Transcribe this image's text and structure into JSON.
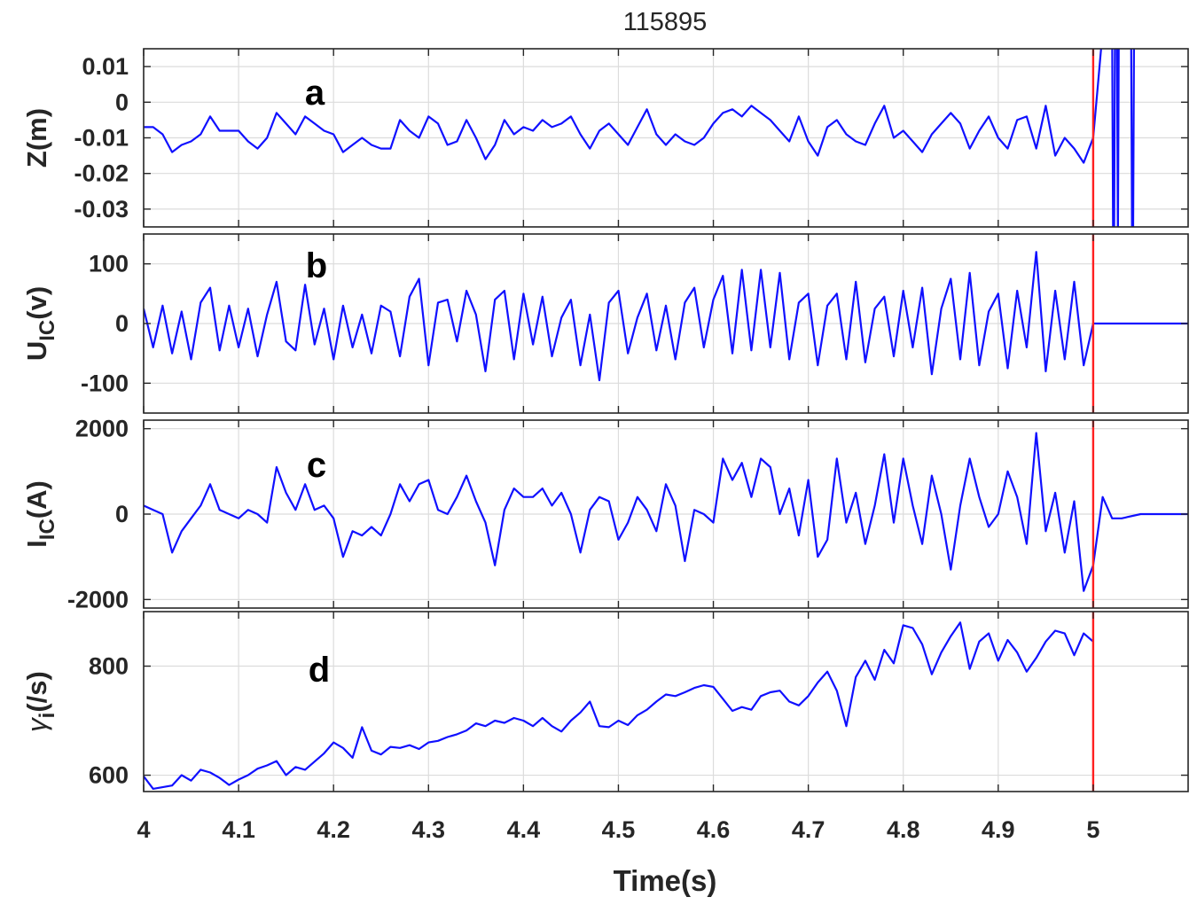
{
  "chart_data": {
    "title": "115895",
    "type": "line",
    "xlabel": "Time(s)",
    "xlim": [
      4,
      5.1
    ],
    "xticks": [
      "4",
      "4.1",
      "4.2",
      "4.3",
      "4.4",
      "4.5",
      "4.6",
      "4.7",
      "4.8",
      "4.9",
      "5"
    ],
    "xtick_values": [
      4,
      4.1,
      4.2,
      4.3,
      4.4,
      4.5,
      4.6,
      4.7,
      4.8,
      4.9,
      5
    ],
    "grid": true,
    "series_color": "#1010ff",
    "marker_line": {
      "x": 5.0,
      "color": "#ff2020"
    },
    "panels": [
      {
        "label": "a",
        "ylabel_main": "Z(m)",
        "ylabel_sub": "",
        "ylabel_unit": "",
        "ylim": [
          -0.035,
          0.015
        ],
        "yticks": [
          "0.01",
          "0",
          "-0.01",
          "-0.02",
          "-0.03"
        ],
        "ytick_values": [
          0.01,
          0,
          -0.01,
          -0.02,
          -0.03
        ],
        "x": [
          4.0,
          4.01,
          4.02,
          4.03,
          4.04,
          4.05,
          4.06,
          4.07,
          4.08,
          4.09,
          4.1,
          4.11,
          4.12,
          4.13,
          4.14,
          4.15,
          4.16,
          4.17,
          4.18,
          4.19,
          4.2,
          4.21,
          4.22,
          4.23,
          4.24,
          4.25,
          4.26,
          4.27,
          4.28,
          4.29,
          4.3,
          4.31,
          4.32,
          4.33,
          4.34,
          4.35,
          4.36,
          4.37,
          4.38,
          4.39,
          4.4,
          4.41,
          4.42,
          4.43,
          4.44,
          4.45,
          4.46,
          4.47,
          4.48,
          4.49,
          4.5,
          4.51,
          4.52,
          4.53,
          4.54,
          4.55,
          4.56,
          4.57,
          4.58,
          4.59,
          4.6,
          4.61,
          4.62,
          4.63,
          4.64,
          4.65,
          4.66,
          4.67,
          4.68,
          4.69,
          4.7,
          4.71,
          4.72,
          4.73,
          4.74,
          4.75,
          4.76,
          4.77,
          4.78,
          4.79,
          4.8,
          4.81,
          4.82,
          4.83,
          4.84,
          4.85,
          4.86,
          4.87,
          4.88,
          4.89,
          4.9,
          4.91,
          4.92,
          4.93,
          4.94,
          4.95,
          4.96,
          4.97,
          4.98,
          4.99,
          5.0,
          5.005,
          5.01,
          5.015,
          5.02,
          5.021,
          5.022,
          5.023,
          5.025,
          5.026,
          5.027,
          5.04,
          5.041,
          5.042,
          5.043
        ],
        "values": [
          -0.007,
          -0.007,
          -0.009,
          -0.014,
          -0.012,
          -0.011,
          -0.009,
          -0.004,
          -0.008,
          -0.008,
          -0.008,
          -0.011,
          -0.013,
          -0.01,
          -0.003,
          -0.006,
          -0.009,
          -0.004,
          -0.006,
          -0.008,
          -0.009,
          -0.014,
          -0.012,
          -0.01,
          -0.012,
          -0.013,
          -0.013,
          -0.005,
          -0.008,
          -0.01,
          -0.004,
          -0.006,
          -0.012,
          -0.011,
          -0.005,
          -0.01,
          -0.016,
          -0.012,
          -0.005,
          -0.009,
          -0.007,
          -0.008,
          -0.005,
          -0.007,
          -0.006,
          -0.004,
          -0.009,
          -0.013,
          -0.008,
          -0.006,
          -0.009,
          -0.012,
          -0.007,
          -0.002,
          -0.009,
          -0.012,
          -0.009,
          -0.011,
          -0.012,
          -0.01,
          -0.006,
          -0.003,
          -0.002,
          -0.004,
          -0.001,
          -0.003,
          -0.005,
          -0.008,
          -0.011,
          -0.004,
          -0.011,
          -0.015,
          -0.007,
          -0.005,
          -0.009,
          -0.011,
          -0.012,
          -0.006,
          -0.001,
          -0.01,
          -0.008,
          -0.011,
          -0.014,
          -0.009,
          -0.006,
          -0.003,
          -0.006,
          -0.013,
          -0.008,
          -0.004,
          -0.01,
          -0.013,
          -0.005,
          -0.004,
          -0.013,
          -0.001,
          -0.015,
          -0.01,
          -0.013,
          -0.017,
          -0.01,
          0.005,
          0.02,
          0.02,
          0.02,
          -0.04,
          -0.04,
          0.02,
          0.02,
          -0.04,
          0.02,
          0.02,
          -0.04,
          -0.04,
          0.02
        ]
      },
      {
        "label": "b",
        "ylabel_main": "U",
        "ylabel_sub": "IC",
        "ylabel_unit": "(v)",
        "ylim": [
          -150,
          150
        ],
        "yticks": [
          "100",
          "0",
          "-100"
        ],
        "ytick_values": [
          100,
          0,
          -100
        ],
        "x": [
          4.0,
          4.01,
          4.02,
          4.03,
          4.04,
          4.05,
          4.06,
          4.07,
          4.08,
          4.09,
          4.1,
          4.11,
          4.12,
          4.13,
          4.14,
          4.15,
          4.16,
          4.17,
          4.18,
          4.19,
          4.2,
          4.21,
          4.22,
          4.23,
          4.24,
          4.25,
          4.26,
          4.27,
          4.28,
          4.29,
          4.3,
          4.31,
          4.32,
          4.33,
          4.34,
          4.35,
          4.36,
          4.37,
          4.38,
          4.39,
          4.4,
          4.41,
          4.42,
          4.43,
          4.44,
          4.45,
          4.46,
          4.47,
          4.48,
          4.49,
          4.5,
          4.51,
          4.52,
          4.53,
          4.54,
          4.55,
          4.56,
          4.57,
          4.58,
          4.59,
          4.6,
          4.61,
          4.62,
          4.63,
          4.64,
          4.65,
          4.66,
          4.67,
          4.68,
          4.69,
          4.7,
          4.71,
          4.72,
          4.73,
          4.74,
          4.75,
          4.76,
          4.77,
          4.78,
          4.79,
          4.8,
          4.81,
          4.82,
          4.83,
          4.84,
          4.85,
          4.86,
          4.87,
          4.88,
          4.89,
          4.9,
          4.91,
          4.92,
          4.93,
          4.94,
          4.95,
          4.96,
          4.97,
          4.98,
          4.99,
          5.0,
          5.001,
          5.1
        ],
        "values": [
          25,
          -40,
          30,
          -50,
          20,
          -60,
          35,
          60,
          -45,
          30,
          -40,
          25,
          -55,
          15,
          70,
          -30,
          -45,
          65,
          -35,
          25,
          -60,
          30,
          -40,
          15,
          -50,
          30,
          20,
          -55,
          45,
          75,
          -70,
          35,
          40,
          -30,
          55,
          15,
          -80,
          40,
          55,
          -60,
          50,
          -35,
          45,
          -55,
          10,
          40,
          -70,
          15,
          -95,
          35,
          55,
          -50,
          10,
          50,
          -45,
          30,
          -60,
          35,
          60,
          -40,
          40,
          80,
          -50,
          90,
          -45,
          90,
          -40,
          85,
          -60,
          35,
          50,
          -70,
          30,
          50,
          -60,
          70,
          -65,
          25,
          45,
          -55,
          55,
          -40,
          60,
          -85,
          25,
          75,
          -60,
          85,
          -70,
          20,
          50,
          -75,
          55,
          -40,
          120,
          -80,
          55,
          -60,
          70,
          -70,
          0,
          0,
          0
        ]
      },
      {
        "label": "c",
        "ylabel_main": "I",
        "ylabel_sub": "IC",
        "ylabel_unit": "(A)",
        "ylim": [
          -2200,
          2200
        ],
        "yticks": [
          "2000",
          "0",
          "-2000"
        ],
        "ytick_values": [
          2000,
          0,
          -2000
        ],
        "x": [
          4.0,
          4.01,
          4.02,
          4.03,
          4.04,
          4.05,
          4.06,
          4.07,
          4.08,
          4.09,
          4.1,
          4.11,
          4.12,
          4.13,
          4.14,
          4.15,
          4.16,
          4.17,
          4.18,
          4.19,
          4.2,
          4.21,
          4.22,
          4.23,
          4.24,
          4.25,
          4.26,
          4.27,
          4.28,
          4.29,
          4.3,
          4.31,
          4.32,
          4.33,
          4.34,
          4.35,
          4.36,
          4.37,
          4.38,
          4.39,
          4.4,
          4.41,
          4.42,
          4.43,
          4.44,
          4.45,
          4.46,
          4.47,
          4.48,
          4.49,
          4.5,
          4.51,
          4.52,
          4.53,
          4.54,
          4.55,
          4.56,
          4.57,
          4.58,
          4.59,
          4.6,
          4.61,
          4.62,
          4.63,
          4.64,
          4.65,
          4.66,
          4.67,
          4.68,
          4.69,
          4.7,
          4.71,
          4.72,
          4.73,
          4.74,
          4.75,
          4.76,
          4.77,
          4.78,
          4.79,
          4.8,
          4.81,
          4.82,
          4.83,
          4.84,
          4.85,
          4.86,
          4.87,
          4.88,
          4.89,
          4.9,
          4.91,
          4.92,
          4.93,
          4.94,
          4.95,
          4.96,
          4.97,
          4.98,
          4.99,
          5.0,
          5.01,
          5.02,
          5.03,
          5.05,
          5.08,
          5.1
        ],
        "values": [
          200,
          100,
          0,
          -900,
          -400,
          -100,
          200,
          700,
          100,
          0,
          -100,
          100,
          0,
          -200,
          1100,
          500,
          100,
          700,
          100,
          200,
          -100,
          -1000,
          -400,
          -500,
          -300,
          -500,
          0,
          700,
          300,
          700,
          800,
          100,
          0,
          400,
          900,
          300,
          -200,
          -1200,
          100,
          600,
          400,
          400,
          600,
          200,
          500,
          0,
          -900,
          100,
          400,
          300,
          -600,
          -200,
          400,
          100,
          -400,
          700,
          200,
          -1100,
          100,
          0,
          -200,
          1300,
          800,
          1200,
          400,
          1300,
          1100,
          0,
          600,
          -500,
          800,
          -1000,
          -600,
          1300,
          -200,
          500,
          -700,
          200,
          1400,
          -200,
          1300,
          200,
          -700,
          900,
          0,
          -1300,
          200,
          1300,
          400,
          -300,
          0,
          1000,
          400,
          -700,
          1900,
          -400,
          500,
          -900,
          300,
          -1800,
          -1200,
          400,
          -100,
          -100,
          0,
          0,
          0
        ]
      },
      {
        "label": "d",
        "ylabel_main": "γ",
        "ylabel_sub": "i",
        "ylabel_unit": "(/s)",
        "ylim": [
          570,
          900
        ],
        "yticks": [
          "800",
          "600"
        ],
        "ytick_values": [
          800,
          600
        ],
        "x": [
          4.0,
          4.01,
          4.02,
          4.03,
          4.04,
          4.05,
          4.06,
          4.07,
          4.08,
          4.09,
          4.1,
          4.11,
          4.12,
          4.13,
          4.14,
          4.15,
          4.16,
          4.17,
          4.18,
          4.19,
          4.2,
          4.21,
          4.22,
          4.23,
          4.24,
          4.25,
          4.26,
          4.27,
          4.28,
          4.29,
          4.3,
          4.31,
          4.32,
          4.33,
          4.34,
          4.35,
          4.36,
          4.37,
          4.38,
          4.39,
          4.4,
          4.41,
          4.42,
          4.43,
          4.44,
          4.45,
          4.46,
          4.47,
          4.48,
          4.49,
          4.5,
          4.51,
          4.52,
          4.53,
          4.54,
          4.55,
          4.56,
          4.57,
          4.58,
          4.59,
          4.6,
          4.61,
          4.62,
          4.63,
          4.64,
          4.65,
          4.66,
          4.67,
          4.68,
          4.69,
          4.7,
          4.71,
          4.72,
          4.73,
          4.74,
          4.75,
          4.76,
          4.77,
          4.78,
          4.79,
          4.8,
          4.81,
          4.82,
          4.83,
          4.84,
          4.85,
          4.86,
          4.87,
          4.88,
          4.89,
          4.9,
          4.91,
          4.92,
          4.93,
          4.94,
          4.95,
          4.96,
          4.97,
          4.98,
          4.99,
          5.0
        ],
        "values": [
          598,
          575,
          578,
          581,
          600,
          590,
          610,
          605,
          595,
          582,
          592,
          600,
          612,
          618,
          626,
          600,
          615,
          610,
          625,
          640,
          660,
          650,
          632,
          688,
          645,
          638,
          652,
          650,
          655,
          648,
          660,
          663,
          670,
          675,
          682,
          695,
          690,
          700,
          696,
          705,
          700,
          690,
          705,
          690,
          680,
          700,
          715,
          735,
          690,
          688,
          700,
          692,
          710,
          720,
          735,
          748,
          745,
          752,
          760,
          765,
          762,
          740,
          718,
          725,
          720,
          745,
          752,
          755,
          735,
          728,
          745,
          770,
          790,
          755,
          690,
          780,
          810,
          775,
          830,
          805,
          875,
          870,
          840,
          785,
          825,
          855,
          880,
          795,
          845,
          860,
          810,
          848,
          825,
          790,
          815,
          845,
          865,
          860,
          820,
          860,
          845
        ]
      }
    ]
  }
}
